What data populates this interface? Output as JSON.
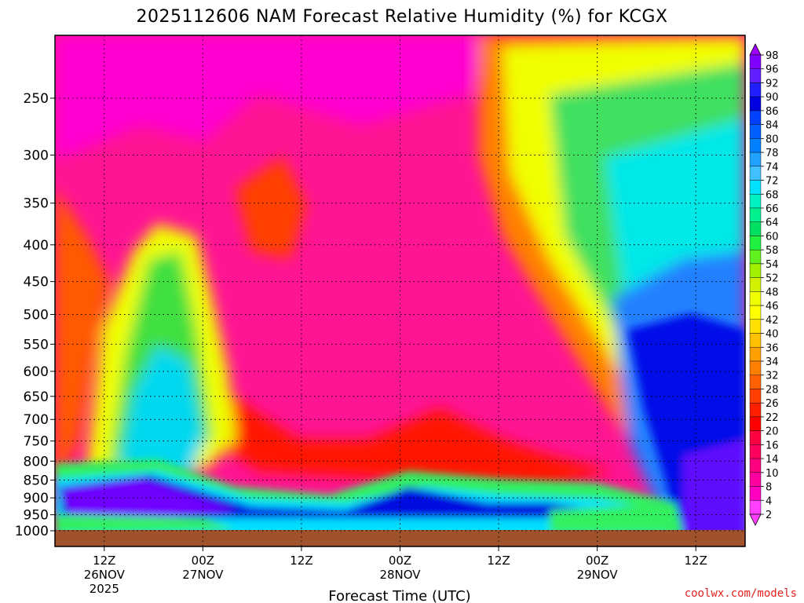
{
  "title": "2025112606 NAM Forecast Relative Humidity (%) for KCGX",
  "credit": "coolwx.com/models",
  "chart_data": {
    "type": "heatmap",
    "title": "2025112606 NAM Forecast Relative Humidity (%) for KCGX",
    "xlabel": "Forecast Time (UTC)",
    "ylabel": "",
    "y_scale": "log-pressure (hPa), reversed",
    "ylim": [
      1000,
      200
    ],
    "y_ticks": [
      250,
      300,
      350,
      400,
      450,
      500,
      550,
      600,
      650,
      700,
      750,
      800,
      850,
      900,
      950,
      1000
    ],
    "x_ticks": [
      {
        "hour": 6,
        "line1": "12Z",
        "line2": "26NOV",
        "line3": "2025"
      },
      {
        "hour": 18,
        "line1": "00Z",
        "line2": "27NOV",
        "line3": ""
      },
      {
        "hour": 30,
        "line1": "12Z",
        "line2": "",
        "line3": ""
      },
      {
        "hour": 42,
        "line1": "00Z",
        "line2": "28NOV",
        "line3": ""
      },
      {
        "hour": 54,
        "line1": "12Z",
        "line2": "",
        "line3": ""
      },
      {
        "hour": 66,
        "line1": "00Z",
        "line2": "29NOV",
        "line3": ""
      },
      {
        "hour": 78,
        "line1": "12Z",
        "line2": "",
        "line3": ""
      }
    ],
    "xlim_hours": [
      0,
      84
    ],
    "grid": true,
    "legend": "colorbar-right",
    "colorbar": {
      "labels": [
        98,
        96,
        92,
        90,
        86,
        84,
        80,
        78,
        74,
        72,
        68,
        66,
        64,
        60,
        58,
        54,
        52,
        48,
        46,
        42,
        40,
        36,
        34,
        32,
        28,
        26,
        22,
        20,
        16,
        14,
        10,
        8,
        4,
        2
      ],
      "colors": [
        "#a000ff",
        "#8000ff",
        "#6020ff",
        "#2020ff",
        "#0000e0",
        "#0040ff",
        "#0060ff",
        "#0080ff",
        "#20a0ff",
        "#40c0ff",
        "#00e0ff",
        "#00f0c0",
        "#00f090",
        "#00e060",
        "#20f040",
        "#60f020",
        "#a0f000",
        "#d0f000",
        "#f0ff00",
        "#ffff00",
        "#ffe000",
        "#ffc000",
        "#ffa000",
        "#ff8000",
        "#ff6000",
        "#ff4000",
        "#ff2000",
        "#ff0000",
        "#ff0040",
        "#ff0060",
        "#ff0080",
        "#ff00a0",
        "#ff00c0",
        "#ff40ff"
      ]
    },
    "ground_color": "#a0522d",
    "features": [
      {
        "region": "upper troposphere early period (200-800 hPa, 26NOV)",
        "rh": "2-10"
      },
      {
        "region": "mid-level moist tongue (400-800 hPa, 26NOV 18Z - 27NOV 00Z)",
        "rh": "40-80"
      },
      {
        "region": "low-level moist layer (850-950 hPa)",
        "rh": "86-98"
      },
      {
        "region": "dry slot (200-800 hPa, 27NOV - 28NOV)",
        "rh": "2-16"
      },
      {
        "region": "upper moistening (200-500 hPa, 28NOV 12Z onward)",
        "rh": "30-70"
      },
      {
        "region": "deep moist column (400-1000 hPa, 29NOV 06Z onward)",
        "rh": "80-98"
      }
    ]
  }
}
